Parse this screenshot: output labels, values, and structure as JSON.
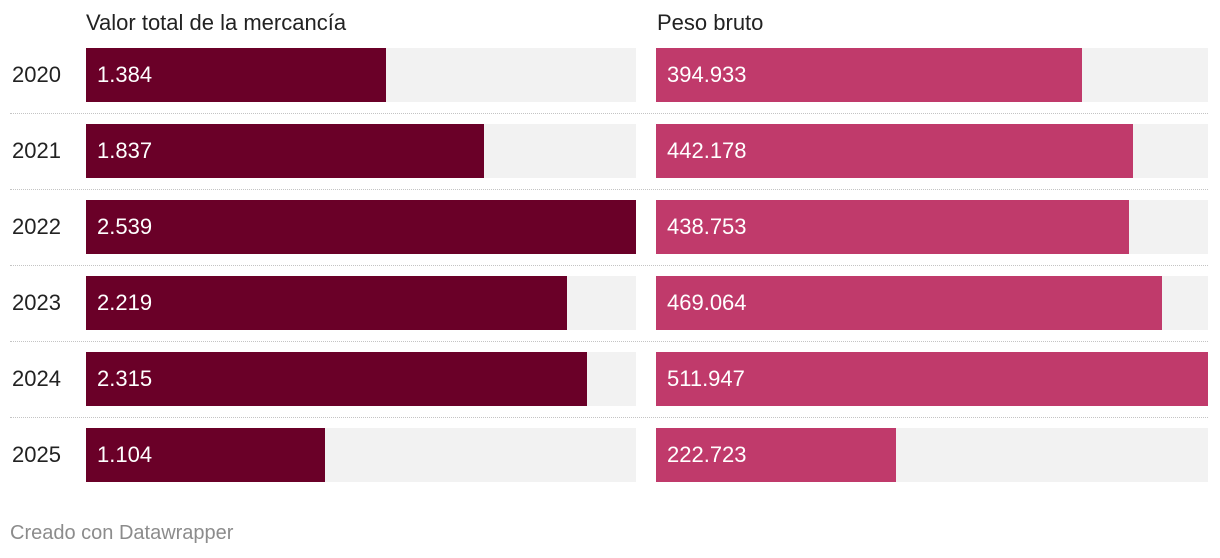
{
  "colors": {
    "series1": "#6a0028",
    "series2": "#c03a6b",
    "track": "#f2f2f2"
  },
  "chart_data": {
    "type": "bar",
    "orientation": "horizontal",
    "categories": [
      "2020",
      "2021",
      "2022",
      "2023",
      "2024",
      "2025"
    ],
    "series": [
      {
        "name": "Valor total de la mercancía",
        "values": [
          1384,
          1837,
          2539,
          2219,
          2315,
          1104
        ],
        "labels": [
          "1.384",
          "1.837",
          "2.539",
          "2.219",
          "2.315",
          "1.104"
        ]
      },
      {
        "name": "Peso bruto",
        "values": [
          394933,
          442178,
          438753,
          469064,
          511947,
          222723
        ],
        "labels": [
          "394.933",
          "442.178",
          "438.753",
          "469.064",
          "511.947",
          "222.723"
        ]
      }
    ],
    "xlim": [
      [
        0,
        2539
      ],
      [
        0,
        511947
      ]
    ]
  },
  "footer": {
    "credit": "Creado con Datawrapper"
  }
}
